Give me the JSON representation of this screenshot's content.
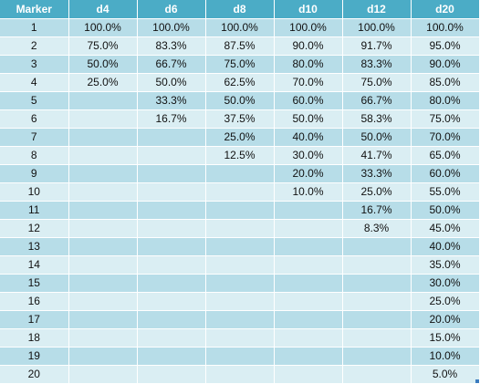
{
  "table": {
    "headers": [
      "Marker",
      "d4",
      "d6",
      "d8",
      "d10",
      "d12",
      "d20"
    ],
    "rows": [
      [
        "1",
        "100.0%",
        "100.0%",
        "100.0%",
        "100.0%",
        "100.0%",
        "100.0%"
      ],
      [
        "2",
        "75.0%",
        "83.3%",
        "87.5%",
        "90.0%",
        "91.7%",
        "95.0%"
      ],
      [
        "3",
        "50.0%",
        "66.7%",
        "75.0%",
        "80.0%",
        "83.3%",
        "90.0%"
      ],
      [
        "4",
        "25.0%",
        "50.0%",
        "62.5%",
        "70.0%",
        "75.0%",
        "85.0%"
      ],
      [
        "5",
        "",
        "33.3%",
        "50.0%",
        "60.0%",
        "66.7%",
        "80.0%"
      ],
      [
        "6",
        "",
        "16.7%",
        "37.5%",
        "50.0%",
        "58.3%",
        "75.0%"
      ],
      [
        "7",
        "",
        "",
        "25.0%",
        "40.0%",
        "50.0%",
        "70.0%"
      ],
      [
        "8",
        "",
        "",
        "12.5%",
        "30.0%",
        "41.7%",
        "65.0%"
      ],
      [
        "9",
        "",
        "",
        "",
        "20.0%",
        "33.3%",
        "60.0%"
      ],
      [
        "10",
        "",
        "",
        "",
        "10.0%",
        "25.0%",
        "55.0%"
      ],
      [
        "11",
        "",
        "",
        "",
        "",
        "16.7%",
        "50.0%"
      ],
      [
        "12",
        "",
        "",
        "",
        "",
        "8.3%",
        "45.0%"
      ],
      [
        "13",
        "",
        "",
        "",
        "",
        "",
        "40.0%"
      ],
      [
        "14",
        "",
        "",
        "",
        "",
        "",
        "35.0%"
      ],
      [
        "15",
        "",
        "",
        "",
        "",
        "",
        "30.0%"
      ],
      [
        "16",
        "",
        "",
        "",
        "",
        "",
        "25.0%"
      ],
      [
        "17",
        "",
        "",
        "",
        "",
        "",
        "20.0%"
      ],
      [
        "18",
        "",
        "",
        "",
        "",
        "",
        "15.0%"
      ],
      [
        "19",
        "",
        "",
        "",
        "",
        "",
        "10.0%"
      ],
      [
        "20",
        "",
        "",
        "",
        "",
        "",
        "5.0%"
      ]
    ]
  },
  "colors": {
    "header": "#4bacc6",
    "band_dark": "#b7dde8",
    "band_light": "#daeef3",
    "handle": "#3b7bbf"
  },
  "icons": {
    "resize_handle": "table-resize-handle-icon"
  }
}
